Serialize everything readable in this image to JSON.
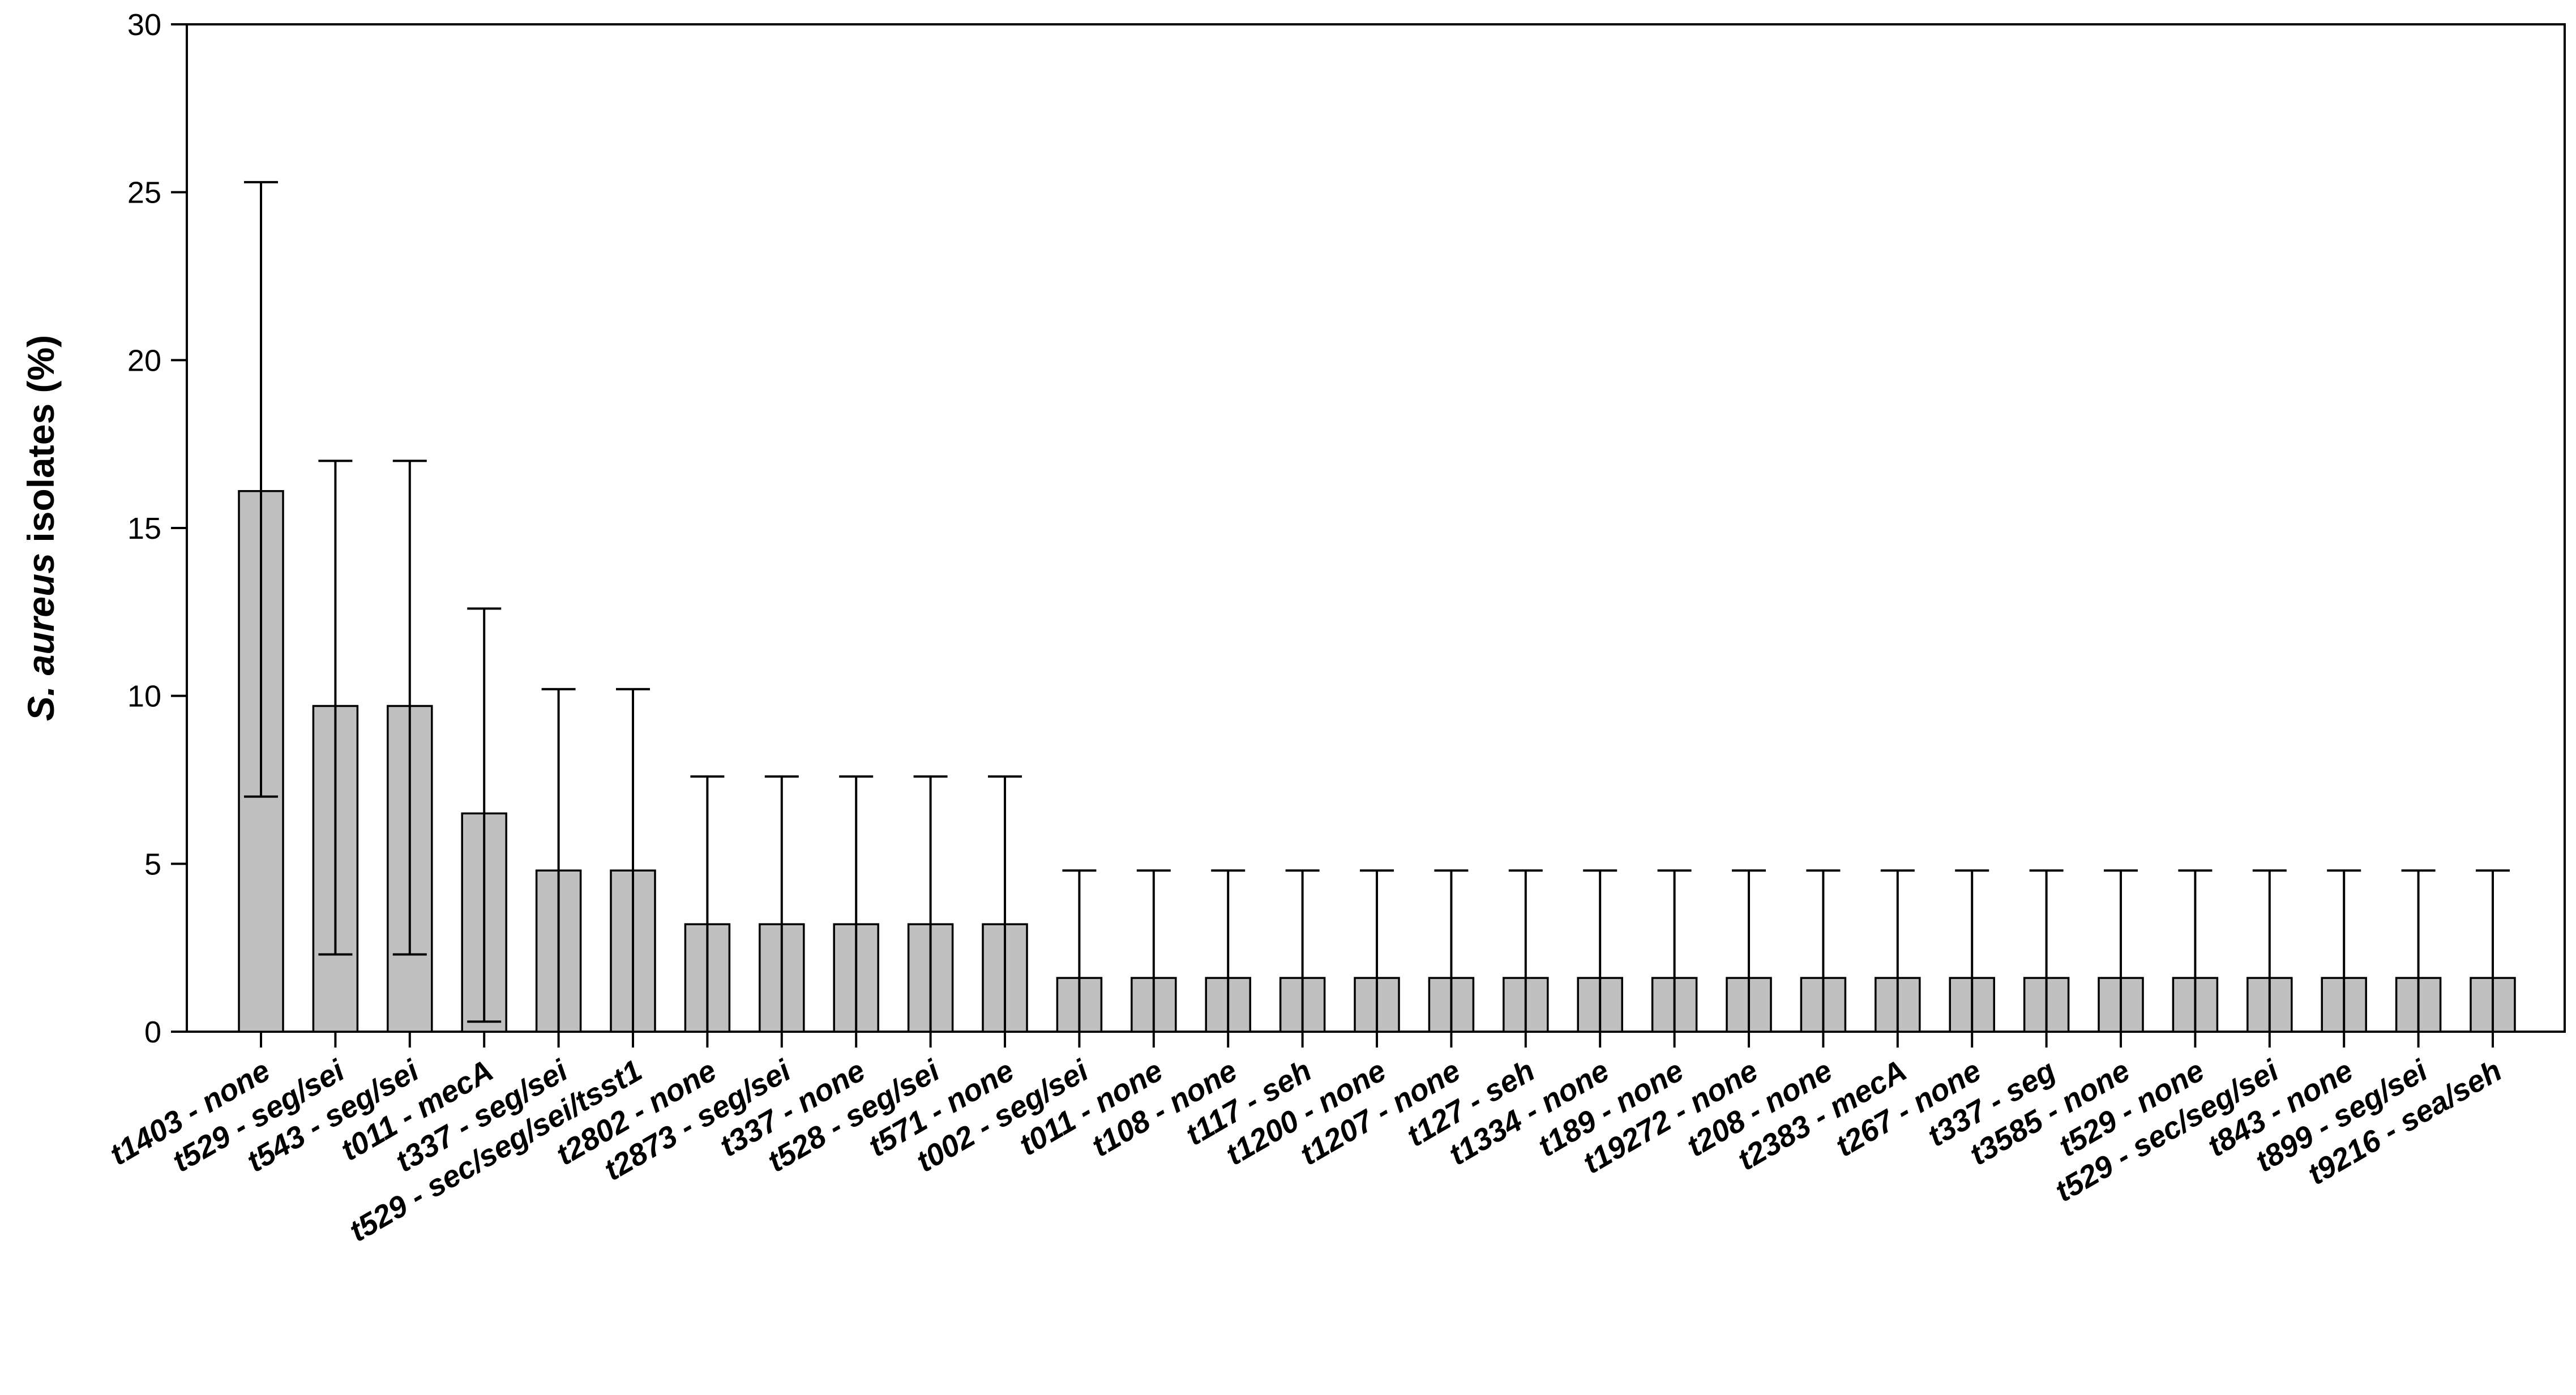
{
  "chart_data": {
    "type": "bar",
    "title": "",
    "xlabel": "",
    "ylabel_italic": "S. aureus",
    "ylabel_rest": " isolates (%)",
    "ylim": [
      0,
      30
    ],
    "yticks": [
      "0",
      "5",
      "10",
      "15",
      "20",
      "25",
      "30"
    ],
    "error_bars": "vertical, asymmetric (lower and upper bounds)",
    "bar_color": "#c0c0c0",
    "categories": [
      "t1403 - none",
      "t529 - seg/sei",
      "t543 - seg/sei",
      "t011 - mecA",
      "t337 - seg/sei",
      "t529 - sec/seg/sei/tsst1",
      "t2802 - none",
      "t2873 - seg/sei",
      "t337 - none",
      "t528 - seg/sei",
      "t571 - none",
      "t002 - seg/sei",
      "t011 - none",
      "t108 - none",
      "t117 - seh",
      "t1200 - none",
      "t1207 - none",
      "t127 - seh",
      "t1334 - none",
      "t189 - none",
      "t19272 - none",
      "t208 - none",
      "t2383 - mecA",
      "t267 - none",
      "t337 - seg",
      "t3585 - none",
      "t529 - none",
      "t529 - sec/seg/sei",
      "t843 - none",
      "t899 - seg/sei",
      "t9216 - sea/seh"
    ],
    "values": [
      16.1,
      9.7,
      9.7,
      6.5,
      4.8,
      4.8,
      3.2,
      3.2,
      3.2,
      3.2,
      3.2,
      1.6,
      1.6,
      1.6,
      1.6,
      1.6,
      1.6,
      1.6,
      1.6,
      1.6,
      1.6,
      1.6,
      1.6,
      1.6,
      1.6,
      1.6,
      1.6,
      1.6,
      1.6,
      1.6,
      1.6
    ],
    "err_low": [
      7.0,
      2.3,
      2.3,
      0.3,
      0,
      0,
      0,
      0,
      0,
      0,
      0,
      0,
      0,
      0,
      0,
      0,
      0,
      0,
      0,
      0,
      0,
      0,
      0,
      0,
      0,
      0,
      0,
      0,
      0,
      0,
      0
    ],
    "err_high": [
      25.3,
      17.0,
      17.0,
      12.6,
      10.2,
      10.2,
      7.6,
      7.6,
      7.6,
      7.6,
      7.6,
      4.8,
      4.8,
      4.8,
      4.8,
      4.8,
      4.8,
      4.8,
      4.8,
      4.8,
      4.8,
      4.8,
      4.8,
      4.8,
      4.8,
      4.8,
      4.8,
      4.8,
      4.8,
      4.8,
      4.8
    ]
  }
}
